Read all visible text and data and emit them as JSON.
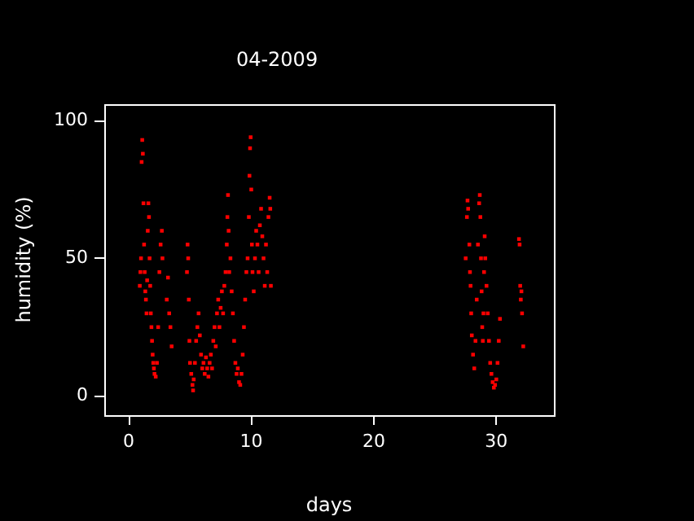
{
  "chart_data": {
    "type": "scatter",
    "title": "04-2009",
    "xlabel": "days",
    "ylabel": "humidity (%)",
    "xlim": [
      -2,
      34.7
    ],
    "xticks": [
      0,
      10,
      20,
      30
    ],
    "ylim": [
      -7,
      106
    ],
    "yticks": [
      0,
      50,
      100
    ],
    "grid": false,
    "legend": false,
    "marker": "square",
    "series": [
      {
        "color": "#ff0000",
        "x": [
          0.9,
          0.95,
          1.0,
          1.05,
          1.1,
          1.15,
          1.2,
          1.25,
          1.3,
          1.35,
          1.4,
          1.45,
          1.5,
          1.55,
          1.6,
          1.65,
          1.7,
          1.75,
          1.8,
          1.85,
          1.9,
          1.95,
          2.0,
          2.05,
          2.1,
          2.2,
          2.3,
          2.4,
          2.5,
          2.6,
          2.7,
          2.75,
          3.1,
          3.2,
          3.3,
          3.4,
          3.5,
          4.75,
          4.8,
          4.85,
          4.9,
          4.95,
          5.0,
          5.1,
          5.2,
          5.25,
          5.3,
          5.4,
          5.5,
          5.6,
          5.7,
          5.8,
          5.9,
          6.0,
          6.1,
          6.2,
          6.3,
          6.4,
          6.5,
          6.6,
          6.7,
          6.8,
          6.9,
          7.0,
          7.1,
          7.2,
          7.3,
          7.4,
          7.5,
          7.6,
          7.7,
          7.8,
          7.9,
          8.0,
          8.05,
          8.1,
          8.15,
          8.2,
          8.3,
          8.4,
          8.5,
          8.6,
          8.7,
          8.8,
          8.9,
          9.0,
          9.1,
          9.2,
          9.3,
          9.4,
          9.5,
          9.6,
          9.7,
          9.8,
          9.85,
          9.9,
          9.95,
          10.0,
          10.05,
          10.1,
          10.2,
          10.3,
          10.4,
          10.5,
          10.6,
          10.7,
          10.8,
          10.9,
          11.0,
          11.1,
          11.2,
          11.3,
          11.4,
          11.5,
          11.55,
          11.6,
          27.5,
          27.6,
          27.65,
          27.7,
          27.8,
          27.85,
          27.9,
          27.95,
          28.0,
          28.1,
          28.2,
          28.3,
          28.4,
          28.5,
          28.6,
          28.65,
          28.7,
          28.75,
          28.8,
          28.85,
          28.9,
          28.95,
          29.0,
          29.05,
          29.1,
          29.2,
          29.3,
          29.4,
          29.5,
          29.6,
          29.7,
          29.8,
          29.9,
          30.0,
          30.1,
          30.2,
          30.3,
          31.85,
          31.9,
          31.95,
          32.0,
          32.05,
          32.1,
          32.2
        ],
        "values": [
          40,
          45,
          50,
          85,
          93,
          88,
          70,
          55,
          45,
          38,
          35,
          30,
          42,
          60,
          70,
          65,
          50,
          40,
          30,
          25,
          20,
          15,
          12,
          10,
          8,
          7,
          12,
          25,
          45,
          55,
          60,
          50,
          35,
          43,
          30,
          25,
          18,
          45,
          55,
          50,
          35,
          20,
          12,
          8,
          4,
          2,
          6,
          12,
          20,
          25,
          30,
          22,
          15,
          10,
          12,
          8,
          14,
          10,
          7,
          12,
          15,
          10,
          20,
          25,
          18,
          30,
          35,
          25,
          32,
          38,
          30,
          40,
          45,
          55,
          65,
          73,
          60,
          45,
          50,
          38,
          30,
          20,
          12,
          8,
          10,
          5,
          4,
          8,
          15,
          25,
          35,
          45,
          50,
          65,
          80,
          90,
          94,
          75,
          55,
          45,
          38,
          50,
          60,
          55,
          45,
          62,
          68,
          58,
          50,
          40,
          55,
          45,
          65,
          72,
          68,
          40,
          50,
          65,
          71,
          68,
          55,
          45,
          40,
          30,
          22,
          15,
          10,
          20,
          35,
          55,
          70,
          73,
          65,
          50,
          38,
          25,
          20,
          30,
          45,
          58,
          50,
          40,
          30,
          20,
          12,
          8,
          5,
          3,
          4,
          6,
          12,
          20,
          28,
          57,
          55,
          40,
          35,
          38,
          30,
          18
        ]
      }
    ]
  }
}
